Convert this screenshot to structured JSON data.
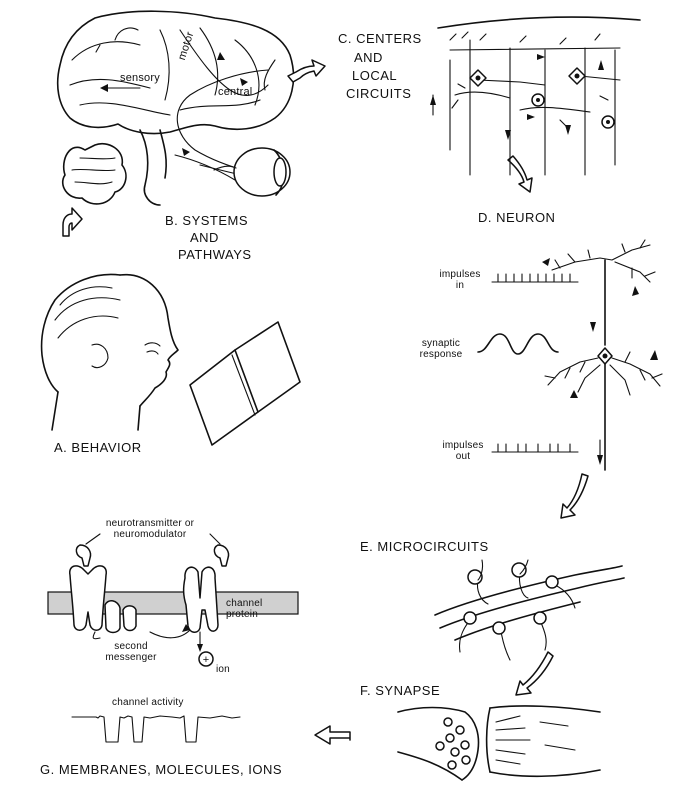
{
  "panels": {
    "a": {
      "title": "A. BEHAVIOR"
    },
    "b": {
      "title_lines": [
        "B. SYSTEMS",
        "AND",
        "PATHWAYS"
      ],
      "labels": {
        "sensory": "sensory",
        "motor": "motor",
        "central": "central"
      }
    },
    "c": {
      "title_lines": [
        "C. CENTERS",
        "AND",
        "LOCAL",
        "CIRCUITS"
      ]
    },
    "d": {
      "title": "D. NEURON",
      "impulses_in": [
        "impulses",
        "in"
      ],
      "synaptic_response": [
        "synaptic",
        "response"
      ],
      "impulses_out": [
        "impulses",
        "out"
      ]
    },
    "e": {
      "title": "E. MICROCIRCUITS"
    },
    "f": {
      "title": "F. SYNAPSE"
    },
    "g": {
      "title": "G. MEMBRANES, MOLECULES, IONS",
      "neurotransmitter": [
        "neurotransmitter or",
        "neuromodulator"
      ],
      "second_messenger": [
        "second",
        "messenger"
      ],
      "channel_protein": [
        "channel",
        "protein"
      ],
      "ion": "ion",
      "ion_symbol": "+",
      "channel_activity": "channel activity"
    }
  }
}
